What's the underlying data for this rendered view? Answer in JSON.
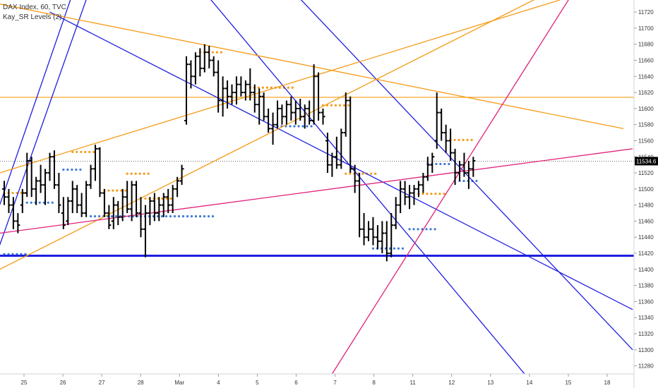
{
  "header": {
    "title": "DAX Index, 60, TVC",
    "indicator": "Kay_SR Levels (2)"
  },
  "chart_data": {
    "type": "ohlc",
    "symbol": "DAX Index",
    "interval": "60",
    "source": "TVC",
    "last_price": 11534.6,
    "ylim": [
      11270,
      11735
    ],
    "y_ticks": [
      11280,
      11300,
      11320,
      11340,
      11360,
      11380,
      11400,
      11420,
      11440,
      11460,
      11480,
      11500,
      11520,
      11540,
      11560,
      11580,
      11600,
      11620,
      11640,
      11660,
      11680,
      11700,
      11720
    ],
    "x_ticks": [
      "25",
      "26",
      "27",
      "28",
      "Mar",
      "4",
      "5",
      "6",
      "7",
      "8",
      "11",
      "12",
      "13",
      "14",
      "15",
      "18"
    ],
    "bars": [
      [
        11500,
        11510,
        11480,
        11490
      ],
      [
        11490,
        11500,
        11470,
        11480
      ],
      [
        11480,
        11490,
        11450,
        11460
      ],
      [
        11460,
        11470,
        11445,
        11455
      ],
      [
        11480,
        11500,
        11470,
        11495
      ],
      [
        11495,
        11545,
        11490,
        11535
      ],
      [
        11535,
        11540,
        11490,
        11500
      ],
      [
        11500,
        11515,
        11480,
        11510
      ],
      [
        11510,
        11530,
        11495,
        11505
      ],
      [
        11505,
        11525,
        11480,
        11520
      ],
      [
        11520,
        11545,
        11510,
        11540
      ],
      [
        11540,
        11548,
        11500,
        11505
      ],
      [
        11505,
        11520,
        11470,
        11480
      ],
      [
        11470,
        11490,
        11450,
        11455
      ],
      [
        11460,
        11490,
        11455,
        11485
      ],
      [
        11485,
        11510,
        11470,
        11500
      ],
      [
        11500,
        11505,
        11470,
        11480
      ],
      [
        11480,
        11495,
        11465,
        11470
      ],
      [
        11470,
        11510,
        11465,
        11505
      ],
      [
        11505,
        11530,
        11500,
        11525
      ],
      [
        11525,
        11555,
        11510,
        11550
      ],
      [
        11550,
        11552,
        11490,
        11495
      ],
      [
        11495,
        11500,
        11465,
        11470
      ],
      [
        11470,
        11480,
        11450,
        11455
      ],
      [
        11460,
        11490,
        11450,
        11480
      ],
      [
        11480,
        11485,
        11455,
        11465
      ],
      [
        11465,
        11500,
        11460,
        11490
      ],
      [
        11490,
        11510,
        11470,
        11475
      ],
      [
        11475,
        11510,
        11460,
        11505
      ],
      [
        11505,
        11510,
        11465,
        11470
      ],
      [
        11470,
        11490,
        11440,
        11450
      ],
      [
        11450,
        11480,
        11415,
        11470
      ],
      [
        11470,
        11490,
        11455,
        11485
      ],
      [
        11485,
        11495,
        11460,
        11470
      ],
      [
        11470,
        11490,
        11460,
        11480
      ],
      [
        11480,
        11495,
        11465,
        11490
      ],
      [
        11490,
        11500,
        11470,
        11480
      ],
      [
        11480,
        11505,
        11470,
        11500
      ],
      [
        11500,
        11515,
        11490,
        11510
      ],
      [
        11510,
        11530,
        11505,
        11525
      ],
      [
        11585,
        11665,
        11580,
        11655
      ],
      [
        11655,
        11660,
        11625,
        11640
      ],
      [
        11640,
        11670,
        11630,
        11665
      ],
      [
        11665,
        11675,
        11640,
        11650
      ],
      [
        11650,
        11680,
        11645,
        11670
      ],
      [
        11670,
        11678,
        11650,
        11660
      ],
      [
        11660,
        11665,
        11640,
        11645
      ],
      [
        11645,
        11660,
        11595,
        11610
      ],
      [
        11610,
        11640,
        11590,
        11625
      ],
      [
        11625,
        11635,
        11600,
        11615
      ],
      [
        11615,
        11630,
        11605,
        11620
      ],
      [
        11620,
        11640,
        11605,
        11630
      ],
      [
        11630,
        11640,
        11615,
        11620
      ],
      [
        11620,
        11635,
        11610,
        11630
      ],
      [
        11630,
        11650,
        11610,
        11620
      ],
      [
        11620,
        11630,
        11595,
        11605
      ],
      [
        11605,
        11625,
        11580,
        11615
      ],
      [
        11615,
        11620,
        11585,
        11590
      ],
      [
        11590,
        11600,
        11570,
        11575
      ],
      [
        11575,
        11595,
        11555,
        11580
      ],
      [
        11580,
        11610,
        11575,
        11600
      ],
      [
        11600,
        11605,
        11580,
        11590
      ],
      [
        11590,
        11610,
        11580,
        11605
      ],
      [
        11605,
        11615,
        11585,
        11595
      ],
      [
        11595,
        11610,
        11580,
        11600
      ],
      [
        11600,
        11612,
        11585,
        11590
      ],
      [
        11590,
        11605,
        11575,
        11600
      ],
      [
        11600,
        11610,
        11580,
        11585
      ],
      [
        11585,
        11655,
        11580,
        11640
      ],
      [
        11640,
        11645,
        11585,
        11595
      ],
      [
        11595,
        11600,
        11580,
        11590
      ],
      [
        11560,
        11570,
        11520,
        11530
      ],
      [
        11530,
        11545,
        11515,
        11540
      ],
      [
        11540,
        11565,
        11525,
        11530
      ],
      [
        11530,
        11575,
        11525,
        11570
      ],
      [
        11570,
        11620,
        11565,
        11610
      ],
      [
        11610,
        11615,
        11520,
        11525
      ],
      [
        11525,
        11530,
        11495,
        11510
      ],
      [
        11510,
        11520,
        11440,
        11450
      ],
      [
        11450,
        11470,
        11430,
        11440
      ],
      [
        11440,
        11460,
        11435,
        11450
      ],
      [
        11450,
        11465,
        11430,
        11440
      ],
      [
        11440,
        11455,
        11425,
        11435
      ],
      [
        11435,
        11460,
        11420,
        11445
      ],
      [
        11445,
        11460,
        11410,
        11420
      ],
      [
        11420,
        11470,
        11415,
        11455
      ],
      [
        11455,
        11490,
        11450,
        11480
      ],
      [
        11480,
        11510,
        11470,
        11500
      ],
      [
        11500,
        11510,
        11480,
        11490
      ],
      [
        11490,
        11505,
        11475,
        11495
      ],
      [
        11495,
        11505,
        11480,
        11500
      ],
      [
        11500,
        11510,
        11490,
        11505
      ],
      [
        11505,
        11520,
        11495,
        11515
      ],
      [
        11515,
        11540,
        11510,
        11530
      ],
      [
        11530,
        11545,
        11520,
        11540
      ],
      [
        11560,
        11620,
        11550,
        11595
      ],
      [
        11595,
        11600,
        11560,
        11570
      ],
      [
        11570,
        11580,
        11545,
        11560
      ],
      [
        11560,
        11575,
        11535,
        11545
      ],
      [
        11545,
        11550,
        11505,
        11520
      ],
      [
        11520,
        11535,
        11510,
        11530
      ],
      [
        11530,
        11545,
        11515,
        11520
      ],
      [
        11520,
        11535,
        11500,
        11525
      ],
      [
        11525,
        11540,
        11515,
        11535
      ]
    ],
    "sr_levels": [
      {
        "value": 11495,
        "from": 0,
        "to": 5,
        "color": "#f59b16"
      },
      {
        "value": 11419,
        "from": 0,
        "to": 5,
        "color": "#3e7ad6"
      },
      {
        "value": 11546,
        "from": 15,
        "to": 20,
        "color": "#f59b16"
      },
      {
        "value": 11524,
        "from": 13,
        "to": 17,
        "color": "#3e7ad6"
      },
      {
        "value": 11483,
        "from": 5,
        "to": 11,
        "color": "#3e7ad6"
      },
      {
        "value": 11498,
        "from": 22,
        "to": 27,
        "color": "#f59b16"
      },
      {
        "value": 11519,
        "from": 27,
        "to": 32,
        "color": "#f59b16"
      },
      {
        "value": 11466,
        "from": 19,
        "to": 30,
        "color": "#3e7ad6"
      },
      {
        "value": 11488,
        "from": 31,
        "to": 37,
        "color": "#f59b16"
      },
      {
        "value": 11466,
        "from": 30,
        "to": 46,
        "color": "#3e7ad6"
      },
      {
        "value": 11670,
        "from": 43,
        "to": 48,
        "color": "#f59b16"
      },
      {
        "value": 11626,
        "from": 54,
        "to": 64,
        "color": "#f59b16"
      },
      {
        "value": 11578,
        "from": 60,
        "to": 68,
        "color": "#3e7ad6"
      },
      {
        "value": 11604,
        "from": 70,
        "to": 76,
        "color": "#f59b16"
      },
      {
        "value": 11519,
        "from": 75,
        "to": 82,
        "color": "#f59b16"
      },
      {
        "value": 11426,
        "from": 81,
        "to": 88,
        "color": "#3e7ad6"
      },
      {
        "value": 11450,
        "from": 89,
        "to": 95,
        "color": "#3e7ad6"
      },
      {
        "value": 11494,
        "from": 91,
        "to": 97,
        "color": "#f59b16"
      },
      {
        "value": 11531,
        "from": 93,
        "to": 98,
        "color": "#3e7ad6"
      },
      {
        "value": 11561,
        "from": 98,
        "to": 103,
        "color": "#f59b16"
      },
      {
        "value": 11510,
        "from": 100,
        "to": 104,
        "color": "#3e7ad6"
      }
    ],
    "horizontal_lines": [
      {
        "value": 11614,
        "color": "#f59b16",
        "width": 1.2
      },
      {
        "value": 11417,
        "color": "#1e1ee0",
        "width": 3
      },
      {
        "value": 11534.6,
        "color": "#555555",
        "width": 0.8,
        "dash": true
      }
    ],
    "trend_lines": [
      {
        "color": "#1e1ee0",
        "points": [
          [
            -1,
            11430
          ],
          [
            27,
            11880
          ]
        ]
      },
      {
        "color": "#1e1ee0",
        "points": [
          [
            -1,
            11480
          ],
          [
            27,
            11940
          ]
        ]
      },
      {
        "color": "#1e1ee0",
        "points": [
          [
            21,
            11900
          ],
          [
            115,
            11265
          ]
        ]
      },
      {
        "color": "#1e1ee0",
        "points": [
          [
            51,
            11820
          ],
          [
            138,
            11300
          ]
        ]
      },
      {
        "color": "#1e1ee0",
        "points": [
          [
            10,
            11720
          ],
          [
            138,
            11350
          ]
        ]
      },
      {
        "color": "#f59b16",
        "points": [
          [
            -1,
            11730
          ],
          [
            136,
            11575
          ]
        ]
      },
      {
        "color": "#f59b16",
        "points": [
          [
            -1,
            11400
          ],
          [
            125,
            11760
          ]
        ]
      },
      {
        "color": "#f59b16",
        "points": [
          [
            -1,
            11520
          ],
          [
            122,
            11735
          ]
        ]
      },
      {
        "color": "#e0207a",
        "points": [
          [
            -1,
            11445
          ],
          [
            138,
            11550
          ]
        ]
      },
      {
        "color": "#e0207a",
        "points": [
          [
            72,
            11270
          ],
          [
            125,
            11745
          ]
        ]
      }
    ]
  }
}
